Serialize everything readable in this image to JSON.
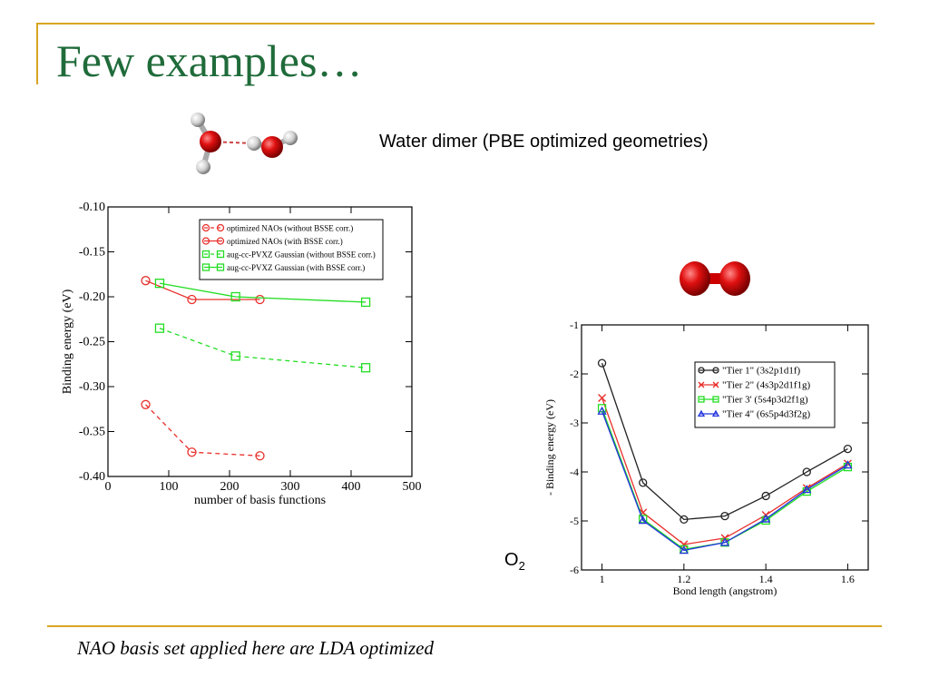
{
  "slide": {
    "title": "Few examples…",
    "subtitle": "Water dimer (PBE optimized geometries)",
    "footnote": "NAO basis set applied here are LDA optimized",
    "o2_label_main": "O",
    "o2_label_sub": "2"
  },
  "colors": {
    "title": "#1f6b3a",
    "rule": "#d9a521",
    "red": "#e8302c",
    "green": "#22dd22",
    "black": "#222222",
    "blue": "#2233dd"
  },
  "chart_data": [
    {
      "type": "line",
      "xlabel": "number of basis functions",
      "ylabel": "Binding energy (eV)",
      "xlim": [
        0,
        500
      ],
      "ylim": [
        -0.4,
        -0.1
      ],
      "xticks": [
        0,
        100,
        200,
        300,
        400,
        500
      ],
      "xtick_labels": [
        "0",
        "100",
        "200",
        "300",
        "400",
        "500"
      ],
      "yticks": [
        -0.4,
        -0.35,
        -0.3,
        -0.25,
        -0.2,
        -0.15,
        -0.1
      ],
      "ytick_labels": [
        "-0.40",
        "-0.35",
        "-0.30",
        "-0.25",
        "-0.20",
        "-0.15",
        "-0.10"
      ],
      "legend_position": "top-right",
      "series": [
        {
          "name": "optimized NAOs (without BSSE corr.)",
          "color": "#e8302c",
          "dash": true,
          "marker": "circle",
          "x": [
            62,
            138,
            250
          ],
          "y": [
            -0.32,
            -0.373,
            -0.377
          ]
        },
        {
          "name": "optimized NAOs (with BSSE corr.)",
          "color": "#e8302c",
          "dash": false,
          "marker": "circle",
          "x": [
            62,
            138,
            250
          ],
          "y": [
            -0.182,
            -0.203,
            -0.203
          ]
        },
        {
          "name": "aug-cc-PVXZ Gaussian (without BSSE corr.)",
          "color": "#22dd22",
          "dash": true,
          "marker": "square",
          "x": [
            85,
            210,
            424
          ],
          "y": [
            -0.235,
            -0.266,
            -0.279
          ]
        },
        {
          "name": "aug-cc-PVXZ Gaussian (with BSSE corr.)",
          "color": "#22dd22",
          "dash": false,
          "marker": "square",
          "x": [
            85,
            210,
            424
          ],
          "y": [
            -0.185,
            -0.2,
            -0.206
          ]
        }
      ]
    },
    {
      "type": "line",
      "xlabel": "Bond length (angstrom)",
      "ylabel": "- Binding energy (eV)",
      "xlim": [
        0.95,
        1.65
      ],
      "ylim": [
        -6,
        -1
      ],
      "xticks": [
        1.0,
        1.2,
        1.4,
        1.6
      ],
      "xtick_labels": [
        "1",
        "1.2",
        "1.4",
        "1.6"
      ],
      "yticks": [
        -6,
        -5,
        -4,
        -3,
        -2,
        -1
      ],
      "ytick_labels": [
        "-6",
        "-5",
        "-4",
        "-3",
        "-2",
        "-1"
      ],
      "legend_position": "top-right",
      "series": [
        {
          "name": "\"Tier 1\" (3s2p1d1f)",
          "color": "#222222",
          "marker": "circle",
          "x": [
            1.0,
            1.1,
            1.2,
            1.3,
            1.4,
            1.5,
            1.6
          ],
          "y": [
            -1.78,
            -4.22,
            -4.97,
            -4.9,
            -4.49,
            -4.0,
            -3.53
          ]
        },
        {
          "name": "\"Tier 2\" (4s3p2d1f1g)",
          "color": "#e8302c",
          "marker": "x",
          "x": [
            1.0,
            1.1,
            1.2,
            1.3,
            1.4,
            1.5,
            1.6
          ],
          "y": [
            -2.49,
            -4.83,
            -5.48,
            -5.35,
            -4.88,
            -4.33,
            -3.83
          ]
        },
        {
          "name": "\"Tier 3' (5s4p3d2f1g)",
          "color": "#22dd22",
          "marker": "square",
          "x": [
            1.0,
            1.1,
            1.2,
            1.3,
            1.4,
            1.5,
            1.6
          ],
          "y": [
            -2.7,
            -4.96,
            -5.58,
            -5.44,
            -4.99,
            -4.4,
            -3.9
          ]
        },
        {
          "name": "\"Tier 4\" (6s5p4d3f2g)",
          "color": "#2233dd",
          "marker": "triangle",
          "x": [
            1.0,
            1.1,
            1.2,
            1.3,
            1.4,
            1.5,
            1.6
          ],
          "y": [
            -2.76,
            -4.99,
            -5.6,
            -5.44,
            -4.96,
            -4.36,
            -3.86
          ]
        }
      ]
    }
  ]
}
